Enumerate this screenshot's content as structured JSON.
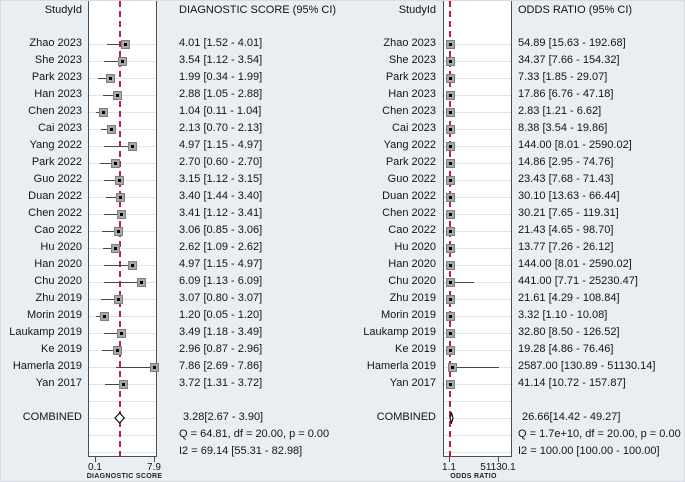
{
  "colors": {
    "background": "#e9eef3",
    "plot_background": "#ffffff",
    "reference_line_red": "#c41e3c",
    "marker_fill": "#a8a8a8",
    "marker_border": "#7e7e7e",
    "grid_line": "#d9e8f0",
    "box_border": "#4d4d4d"
  },
  "chart_data": [
    {
      "type": "forest",
      "id": "diagnostic-score",
      "study_col_header": "StudyId",
      "value_col_header": "DIAGNOSTIC SCORE (95% CI)",
      "axis": {
        "title": "DIAGNOSTIC SCORE",
        "min": 0.1,
        "max": 7.9,
        "tick_labels": [
          "0.1",
          "7.9"
        ]
      },
      "studies": [
        {
          "label": "Zhao 2023",
          "est": 4.01,
          "lo": 1.52,
          "hi": 4.01,
          "text": "4.01 [1.52 - 4.01]"
        },
        {
          "label": "She 2023",
          "est": 3.54,
          "lo": 1.12,
          "hi": 3.54,
          "text": "3.54 [1.12 - 3.54]"
        },
        {
          "label": "Park 2023",
          "est": 1.99,
          "lo": 0.34,
          "hi": 1.99,
          "text": "1.99 [0.34 - 1.99]"
        },
        {
          "label": "Han 2023",
          "est": 2.88,
          "lo": 1.05,
          "hi": 2.88,
          "text": "2.88 [1.05 - 2.88]"
        },
        {
          "label": "Chen 2023",
          "est": 1.04,
          "lo": 0.11,
          "hi": 1.04,
          "text": "1.04 [0.11 - 1.04]"
        },
        {
          "label": "Cai 2023",
          "est": 2.13,
          "lo": 0.7,
          "hi": 2.13,
          "text": "2.13 [0.70 - 2.13]"
        },
        {
          "label": "Yang 2022",
          "est": 4.97,
          "lo": 1.15,
          "hi": 4.97,
          "text": "4.97 [1.15 - 4.97]"
        },
        {
          "label": "Park 2022",
          "est": 2.7,
          "lo": 0.6,
          "hi": 2.7,
          "text": "2.70 [0.60 - 2.70]"
        },
        {
          "label": "Guo 2022",
          "est": 3.15,
          "lo": 1.12,
          "hi": 3.15,
          "text": "3.15 [1.12 - 3.15]"
        },
        {
          "label": "Duan 2022",
          "est": 3.4,
          "lo": 1.44,
          "hi": 3.4,
          "text": "3.40 [1.44 - 3.40]"
        },
        {
          "label": "Chen 2022",
          "est": 3.41,
          "lo": 1.12,
          "hi": 3.41,
          "text": "3.41 [1.12 - 3.41]"
        },
        {
          "label": "Cao 2022",
          "est": 3.06,
          "lo": 0.85,
          "hi": 3.06,
          "text": "3.06 [0.85 - 3.06]"
        },
        {
          "label": "Hu 2020",
          "est": 2.62,
          "lo": 1.09,
          "hi": 2.62,
          "text": "2.62 [1.09 - 2.62]"
        },
        {
          "label": "Han 2020",
          "est": 4.97,
          "lo": 1.15,
          "hi": 4.97,
          "text": "4.97 [1.15 - 4.97]"
        },
        {
          "label": "Chu 2020",
          "est": 6.09,
          "lo": 1.13,
          "hi": 6.09,
          "text": "6.09 [1.13 - 6.09]"
        },
        {
          "label": "Zhu 2019",
          "est": 3.07,
          "lo": 0.8,
          "hi": 3.07,
          "text": "3.07 [0.80 - 3.07]"
        },
        {
          "label": "Morin 2019",
          "est": 1.2,
          "lo": 0.05,
          "hi": 1.2,
          "text": "1.20 [0.05 - 1.20]"
        },
        {
          "label": "Laukamp 2019",
          "est": 3.49,
          "lo": 1.18,
          "hi": 3.49,
          "text": "3.49 [1.18 - 3.49]"
        },
        {
          "label": "Ke 2019",
          "est": 2.96,
          "lo": 0.87,
          "hi": 2.96,
          "text": "2.96 [0.87 - 2.96]"
        },
        {
          "label": "Hamerla 2019",
          "est": 7.86,
          "lo": 2.69,
          "hi": 7.86,
          "text": "7.86 [2.69 - 7.86]"
        },
        {
          "label": "Yan 2017",
          "est": 3.72,
          "lo": 1.31,
          "hi": 3.72,
          "text": "3.72 [1.31 - 3.72]"
        }
      ],
      "combined": {
        "label": "COMBINED",
        "est": 3.28,
        "lo": 2.67,
        "hi": 3.9,
        "text": "3.28[2.67 - 3.90]"
      },
      "heterogeneity": {
        "q": "Q = 64.81, df = 20.00, p =  0.00",
        "i2": "I2 = 69.14 [55.31 - 82.98]"
      }
    },
    {
      "type": "forest",
      "id": "odds-ratio",
      "study_col_header": "StudyId",
      "value_col_header": "ODDS RATIO (95% CI)",
      "axis": {
        "title": "ODDS RATIO",
        "min": 1.1,
        "max": 51130.1,
        "tick_labels": [
          "1.1",
          "51130.1"
        ]
      },
      "studies": [
        {
          "label": "Zhao 2023",
          "est": 54.89,
          "lo": 15.63,
          "hi": 192.68,
          "text": "54.89 [15.63 - 192.68]"
        },
        {
          "label": "She 2023",
          "est": 34.37,
          "lo": 7.66,
          "hi": 154.32,
          "text": "34.37 [7.66 - 154.32]"
        },
        {
          "label": "Park 2023",
          "est": 7.33,
          "lo": 1.85,
          "hi": 29.07,
          "text": "7.33 [1.85 - 29.07]"
        },
        {
          "label": "Han 2023",
          "est": 17.86,
          "lo": 6.76,
          "hi": 47.18,
          "text": "17.86 [6.76 - 47.18]"
        },
        {
          "label": "Chen 2023",
          "est": 2.83,
          "lo": 1.21,
          "hi": 6.62,
          "text": "2.83 [1.21 - 6.62]"
        },
        {
          "label": "Cai 2023",
          "est": 8.38,
          "lo": 3.54,
          "hi": 19.86,
          "text": "8.38 [3.54 - 19.86]"
        },
        {
          "label": "Yang 2022",
          "est": 144.0,
          "lo": 8.01,
          "hi": 2590.02,
          "text": "144.00 [8.01 - 2590.02]"
        },
        {
          "label": "Park 2022",
          "est": 14.86,
          "lo": 2.95,
          "hi": 74.76,
          "text": "14.86 [2.95 - 74.76]"
        },
        {
          "label": "Guo 2022",
          "est": 23.43,
          "lo": 7.68,
          "hi": 71.43,
          "text": "23.43 [7.68 - 71.43]"
        },
        {
          "label": "Duan 2022",
          "est": 30.1,
          "lo": 13.63,
          "hi": 66.44,
          "text": "30.10 [13.63 - 66.44]"
        },
        {
          "label": "Chen 2022",
          "est": 30.21,
          "lo": 7.65,
          "hi": 119.31,
          "text": "30.21 [7.65 - 119.31]"
        },
        {
          "label": "Cao 2022",
          "est": 21.43,
          "lo": 4.65,
          "hi": 98.7,
          "text": "21.43 [4.65 - 98.70]"
        },
        {
          "label": "Hu 2020",
          "est": 13.77,
          "lo": 7.26,
          "hi": 26.12,
          "text": "13.77 [7.26 - 26.12]"
        },
        {
          "label": "Han 2020",
          "est": 144.0,
          "lo": 8.01,
          "hi": 2590.02,
          "text": "144.00 [8.01 - 2590.02]"
        },
        {
          "label": "Chu 2020",
          "est": 441.0,
          "lo": 7.71,
          "hi": 25230.47,
          "text": "441.00 [7.71 - 25230.47]"
        },
        {
          "label": "Zhu 2019",
          "est": 21.61,
          "lo": 4.29,
          "hi": 108.84,
          "text": "21.61 [4.29 - 108.84]"
        },
        {
          "label": "Morin 2019",
          "est": 3.32,
          "lo": 1.1,
          "hi": 10.08,
          "text": "3.32 [1.10 - 10.08]"
        },
        {
          "label": "Laukamp 2019",
          "est": 32.8,
          "lo": 8.5,
          "hi": 126.52,
          "text": "32.80 [8.50 - 126.52]"
        },
        {
          "label": "Ke 2019",
          "est": 19.28,
          "lo": 4.86,
          "hi": 76.46,
          "text": "19.28 [4.86 - 76.46]"
        },
        {
          "label": "Hamerla 2019",
          "est": 2587.0,
          "lo": 130.89,
          "hi": 51130.14,
          "text": "2587.00 [130.89 - 51130.14]"
        },
        {
          "label": "Yan 2017",
          "est": 41.14,
          "lo": 10.72,
          "hi": 157.87,
          "text": "41.14 [10.72 - 157.87]"
        }
      ],
      "combined": {
        "label": "COMBINED",
        "est": 26.66,
        "lo": 14.42,
        "hi": 49.27,
        "text": "26.66[14.42 - 49.27]"
      },
      "heterogeneity": {
        "q": "Q = 1.7e+10, df = 20.00, p =  0.00",
        "i2": "I2 = 100.00 [100.00 - 100.00]"
      }
    }
  ]
}
